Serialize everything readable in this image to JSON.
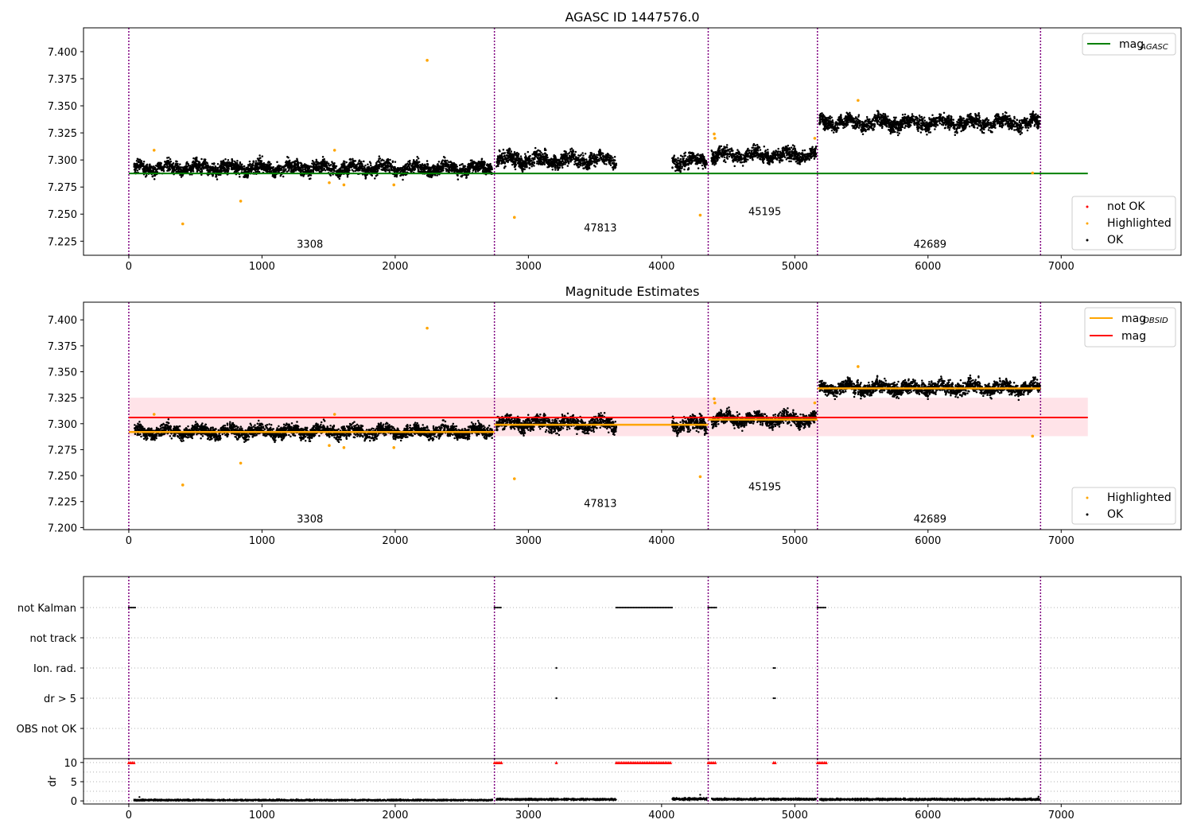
{
  "figure": {
    "panel1_title": "AGASC ID 1447576.0",
    "panel2_title": "Magnitude Estimates"
  },
  "legend1": {
    "mag_agasc_base": "mag",
    "mag_agasc_sub": "AGASC",
    "not_ok": "not OK",
    "highlighted": "Highlighted",
    "ok": "OK"
  },
  "legend2": {
    "mag_obsid_base": "mag",
    "mag_obsid_sub": "OBSID",
    "mag": "mag",
    "highlighted": "Highlighted",
    "ok": "OK"
  },
  "colors": {
    "ok": "#000000",
    "highlighted": "#ffa500",
    "not_ok": "#ff0000",
    "mag_agasc": "#008000",
    "mag_obsid": "#ffa500",
    "mag": "#ff0000",
    "mag_band": "#ffc0cb",
    "obs_boundary": "#800080"
  },
  "chart_data": [
    {
      "type": "scatter",
      "title": "AGASC ID 1447576.0",
      "xlim": [
        -340,
        7900
      ],
      "ylim": [
        7.212,
        7.422
      ],
      "xticks": [
        0,
        1000,
        2000,
        3000,
        4000,
        5000,
        6000,
        7000
      ],
      "yticks": [
        7.225,
        7.25,
        7.275,
        7.3,
        7.325,
        7.35,
        7.375,
        7.4
      ],
      "ytick_labels": [
        "7.225",
        "7.250",
        "7.275",
        "7.300",
        "7.325",
        "7.350",
        "7.375",
        "7.400"
      ],
      "grid": false,
      "legend_upper": "top-right",
      "legend_lower": "bottom-right",
      "observation_boundaries": [
        0,
        2745,
        4350,
        5170,
        6845
      ],
      "observation_labels": [
        {
          "text": "3308",
          "x": 1360,
          "y": 7.219
        },
        {
          "text": "47813",
          "x": 3540,
          "y": 7.234
        },
        {
          "text": "45195",
          "x": 4775,
          "y": 7.249
        },
        {
          "text": "42689",
          "x": 6015,
          "y": 7.219
        }
      ],
      "mag_agasc": {
        "value": 7.2875,
        "x_range": [
          0,
          7200
        ]
      },
      "ok_segments": [
        {
          "x0": 40,
          "x1": 2730,
          "mean": 7.2925,
          "spread": 0.0075
        },
        {
          "x0": 2760,
          "x1": 3660,
          "mean": 7.3,
          "spread": 0.0085
        },
        {
          "x0": 4080,
          "x1": 4340,
          "mean": 7.299,
          "spread": 0.0085
        },
        {
          "x0": 4375,
          "x1": 5160,
          "mean": 7.3045,
          "spread": 0.008
        },
        {
          "x0": 5185,
          "x1": 6840,
          "mean": 7.3345,
          "spread": 0.008
        }
      ],
      "highlighted_points": [
        {
          "x": 190,
          "y": 7.309
        },
        {
          "x": 405,
          "y": 7.241
        },
        {
          "x": 840,
          "y": 7.262
        },
        {
          "x": 1545,
          "y": 7.309
        },
        {
          "x": 1505,
          "y": 7.279
        },
        {
          "x": 1615,
          "y": 7.277
        },
        {
          "x": 1990,
          "y": 7.277
        },
        {
          "x": 2240,
          "y": 7.392
        },
        {
          "x": 2895,
          "y": 7.247
        },
        {
          "x": 4290,
          "y": 7.249
        },
        {
          "x": 4395,
          "y": 7.324
        },
        {
          "x": 4400,
          "y": 7.32
        },
        {
          "x": 5150,
          "y": 7.32
        },
        {
          "x": 5475,
          "y": 7.355
        },
        {
          "x": 6785,
          "y": 7.288
        }
      ]
    },
    {
      "type": "scatter",
      "title": "Magnitude Estimates",
      "xlim": [
        -340,
        7900
      ],
      "ylim": [
        7.198,
        7.417
      ],
      "xticks": [
        0,
        1000,
        2000,
        3000,
        4000,
        5000,
        6000,
        7000
      ],
      "yticks": [
        7.2,
        7.225,
        7.25,
        7.275,
        7.3,
        7.325,
        7.35,
        7.375,
        7.4
      ],
      "ytick_labels": [
        "7.200",
        "7.225",
        "7.250",
        "7.275",
        "7.300",
        "7.325",
        "7.350",
        "7.375",
        "7.400"
      ],
      "grid": false,
      "legend_upper": "top-right",
      "legend_lower": "bottom-right",
      "observation_boundaries": [
        0,
        2745,
        4350,
        5170,
        6845
      ],
      "observation_labels": [
        {
          "text": "3308",
          "x": 1360,
          "y": 7.205
        },
        {
          "text": "47813",
          "x": 3540,
          "y": 7.22
        },
        {
          "text": "45195",
          "x": 4775,
          "y": 7.236
        },
        {
          "text": "42689",
          "x": 6015,
          "y": 7.205
        }
      ],
      "mag": {
        "value": 7.306,
        "band": [
          7.288,
          7.325
        ],
        "x_range": [
          0,
          7200
        ]
      },
      "mag_obsid": [
        {
          "x0": 0,
          "x1": 2745,
          "value": 7.292
        },
        {
          "x0": 2745,
          "x1": 4350,
          "value": 7.299
        },
        {
          "x0": 4350,
          "x1": 5170,
          "value": 7.304
        },
        {
          "x0": 5170,
          "x1": 6845,
          "value": 7.334
        }
      ],
      "ok_segments": [
        {
          "x0": 40,
          "x1": 2730,
          "mean": 7.2925,
          "spread": 0.0075
        },
        {
          "x0": 2760,
          "x1": 3660,
          "mean": 7.3,
          "spread": 0.0085
        },
        {
          "x0": 4080,
          "x1": 4340,
          "mean": 7.299,
          "spread": 0.0085
        },
        {
          "x0": 4375,
          "x1": 5160,
          "mean": 7.3045,
          "spread": 0.008
        },
        {
          "x0": 5185,
          "x1": 6840,
          "mean": 7.3345,
          "spread": 0.008
        }
      ],
      "highlighted_points": [
        {
          "x": 190,
          "y": 7.309
        },
        {
          "x": 405,
          "y": 7.241
        },
        {
          "x": 840,
          "y": 7.262
        },
        {
          "x": 1545,
          "y": 7.309
        },
        {
          "x": 1505,
          "y": 7.279
        },
        {
          "x": 1615,
          "y": 7.277
        },
        {
          "x": 1990,
          "y": 7.277
        },
        {
          "x": 2240,
          "y": 7.392
        },
        {
          "x": 2895,
          "y": 7.247
        },
        {
          "x": 4290,
          "y": 7.249
        },
        {
          "x": 4395,
          "y": 7.324
        },
        {
          "x": 4400,
          "y": 7.32
        },
        {
          "x": 5150,
          "y": 7.32
        },
        {
          "x": 5475,
          "y": 7.355
        },
        {
          "x": 6785,
          "y": 7.288
        }
      ]
    },
    {
      "type": "scatter",
      "title": "",
      "xlim": [
        -340,
        7900
      ],
      "grid": true,
      "flag_categories": [
        "not Kalman",
        "not track",
        "Ion. rad.",
        "dr > 5",
        "OBS not OK"
      ],
      "flag_ranges": {
        "not Kalman": [
          [
            0,
            50
          ],
          [
            2745,
            2800
          ],
          [
            3660,
            4080
          ],
          [
            4350,
            4410
          ],
          [
            5170,
            5240
          ]
        ],
        "not track": [],
        "Ion. rad.": [
          [
            3210,
            3210
          ],
          [
            4840,
            4860
          ]
        ],
        "dr > 5": [
          [
            3210,
            3210
          ],
          [
            4840,
            4860
          ]
        ],
        "OBS not OK": []
      },
      "observation_boundaries": [
        0,
        2745,
        4350,
        5170,
        6845
      ]
    },
    {
      "type": "scatter",
      "title": "",
      "ylabel": "dr",
      "xlim": [
        -340,
        7900
      ],
      "ylim": [
        -0.8,
        11
      ],
      "xticks": [
        0,
        1000,
        2000,
        3000,
        4000,
        5000,
        6000,
        7000
      ],
      "yticks": [
        0,
        5,
        10
      ],
      "grid": true,
      "clipped_value": 10,
      "clipped_ranges": [
        [
          0,
          50
        ],
        [
          2745,
          2800
        ],
        [
          3210,
          3210
        ],
        [
          3660,
          4080
        ],
        [
          4350,
          4410
        ],
        [
          4840,
          4860
        ],
        [
          5170,
          5240
        ]
      ],
      "dr_segments": [
        {
          "x0": 40,
          "x1": 2730,
          "mean": 0.2,
          "spread": 0.2
        },
        {
          "x0": 2760,
          "x1": 3660,
          "mean": 0.4,
          "spread": 0.25
        },
        {
          "x0": 4080,
          "x1": 4340,
          "mean": 0.5,
          "spread": 0.3
        },
        {
          "x0": 4375,
          "x1": 5160,
          "mean": 0.45,
          "spread": 0.25
        },
        {
          "x0": 5185,
          "x1": 6840,
          "mean": 0.4,
          "spread": 0.25
        }
      ],
      "observation_boundaries": [
        0,
        2745,
        4350,
        5170,
        6845
      ]
    }
  ]
}
